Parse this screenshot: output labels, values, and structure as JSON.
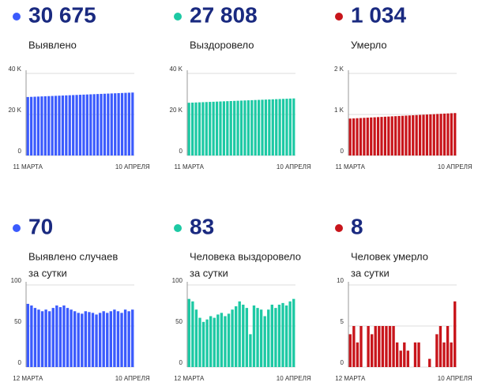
{
  "chart_data": [
    {
      "type": "bar",
      "total": "30 675",
      "label": [
        "Выявлено"
      ],
      "color": "#3b5bfd",
      "categories": [
        "11 МАРТА",
        null,
        null,
        null,
        null,
        null,
        null,
        null,
        null,
        null,
        null,
        null,
        null,
        null,
        null,
        null,
        null,
        null,
        null,
        null,
        null,
        null,
        null,
        null,
        null,
        null,
        null,
        null,
        null,
        null,
        "10 АПРЕЛЯ"
      ],
      "values": [
        28500,
        28573,
        28645,
        28718,
        28790,
        28863,
        28935,
        29008,
        29080,
        29153,
        29225,
        29298,
        29370,
        29443,
        29515,
        29588,
        29660,
        29733,
        29805,
        29878,
        29950,
        30023,
        30095,
        30168,
        30240,
        30313,
        30385,
        30458,
        30530,
        30603,
        30675
      ],
      "ylim": [
        0,
        40000
      ],
      "yticks": [
        0,
        {
          "value": 20000,
          "label": "20 K"
        },
        {
          "value": 40000,
          "label": "40 K"
        }
      ],
      "grid": true
    },
    {
      "type": "bar",
      "total": "27 808",
      "label": [
        "Выздоровело"
      ],
      "color": "#1dc9a4",
      "categories": [
        "11 МАРТА",
        null,
        null,
        null,
        null,
        null,
        null,
        null,
        null,
        null,
        null,
        null,
        null,
        null,
        null,
        null,
        null,
        null,
        null,
        null,
        null,
        null,
        null,
        null,
        null,
        null,
        null,
        null,
        null,
        null,
        "10 АПРЕЛЯ"
      ],
      "values": [
        25700,
        25770,
        25841,
        25911,
        25981,
        26051,
        26122,
        26192,
        26262,
        26332,
        26403,
        26473,
        26543,
        26614,
        26684,
        26754,
        26824,
        26895,
        26965,
        27035,
        27105,
        27176,
        27246,
        27316,
        27387,
        27457,
        27527,
        27597,
        27668,
        27738,
        27808
      ],
      "ylim": [
        0,
        40000
      ],
      "yticks": [
        0,
        {
          "value": 20000,
          "label": "20 K"
        },
        {
          "value": 40000,
          "label": "40 K"
        }
      ],
      "grid": true
    },
    {
      "type": "bar",
      "total": "1 034",
      "label": [
        "Умерло"
      ],
      "color": "#c8151b",
      "categories": [
        "11 МАРТА",
        null,
        null,
        null,
        null,
        null,
        null,
        null,
        null,
        null,
        null,
        null,
        null,
        null,
        null,
        null,
        null,
        null,
        null,
        null,
        null,
        null,
        null,
        null,
        null,
        null,
        null,
        null,
        null,
        null,
        "10 АПРЕЛЯ"
      ],
      "values": [
        900,
        904,
        909,
        913,
        918,
        922,
        927,
        931,
        936,
        940,
        945,
        949,
        954,
        958,
        963,
        967,
        972,
        976,
        981,
        985,
        989,
        994,
        998,
        1003,
        1007,
        1012,
        1016,
        1021,
        1025,
        1030,
        1034
      ],
      "ylim": [
        0,
        2000
      ],
      "yticks": [
        0,
        {
          "value": 1000,
          "label": "1 K"
        },
        {
          "value": 2000,
          "label": "2 K"
        }
      ],
      "grid": true
    },
    {
      "type": "bar",
      "total": "70",
      "label": [
        "Выявлено случаев",
        "за сутки"
      ],
      "color": "#3b5bfd",
      "categories": [
        "12 МАРТА",
        null,
        null,
        null,
        null,
        null,
        null,
        null,
        null,
        null,
        null,
        null,
        null,
        null,
        null,
        null,
        null,
        null,
        null,
        null,
        null,
        null,
        null,
        null,
        null,
        null,
        null,
        null,
        null,
        "10 АПРЕЛЯ"
      ],
      "values": [
        77,
        75,
        72,
        70,
        68,
        70,
        68,
        72,
        75,
        73,
        75,
        72,
        70,
        68,
        66,
        65,
        68,
        67,
        66,
        64,
        66,
        68,
        66,
        68,
        70,
        68,
        66,
        70,
        68,
        70
      ],
      "ylim": [
        0,
        100
      ],
      "yticks": [
        0,
        50,
        100
      ],
      "grid": true
    },
    {
      "type": "bar",
      "total": "83",
      "label": [
        "Человека выздоровело",
        "за сутки"
      ],
      "color": "#1dc9a4",
      "categories": [
        "12 МАРТА",
        null,
        null,
        null,
        null,
        null,
        null,
        null,
        null,
        null,
        null,
        null,
        null,
        null,
        null,
        null,
        null,
        null,
        null,
        null,
        null,
        null,
        null,
        null,
        null,
        null,
        null,
        null,
        null,
        "10 АПРЕЛЯ"
      ],
      "values": [
        83,
        80,
        70,
        60,
        55,
        58,
        62,
        60,
        64,
        66,
        62,
        65,
        70,
        74,
        80,
        76,
        72,
        40,
        75,
        72,
        70,
        62,
        70,
        76,
        72,
        76,
        78,
        75,
        80,
        83
      ],
      "ylim": [
        0,
        100
      ],
      "yticks": [
        0,
        50,
        100
      ],
      "grid": true
    },
    {
      "type": "bar",
      "total": "8",
      "label": [
        "Человек умерло",
        "за сутки"
      ],
      "color": "#c8151b",
      "categories": [
        "12 МАРТА",
        null,
        null,
        null,
        null,
        null,
        null,
        null,
        null,
        null,
        null,
        null,
        null,
        null,
        null,
        null,
        null,
        null,
        null,
        null,
        null,
        null,
        null,
        null,
        null,
        null,
        null,
        null,
        null,
        "10 АПРЕЛЯ"
      ],
      "values": [
        4,
        5,
        3,
        5,
        0,
        5,
        4,
        5,
        5,
        5,
        5,
        5,
        5,
        3,
        2,
        3,
        2,
        0,
        3,
        3,
        0,
        0,
        1,
        0,
        4,
        5,
        3,
        5,
        3,
        8
      ],
      "ylim": [
        0,
        10
      ],
      "yticks": [
        0,
        5,
        10
      ],
      "grid": true
    }
  ]
}
